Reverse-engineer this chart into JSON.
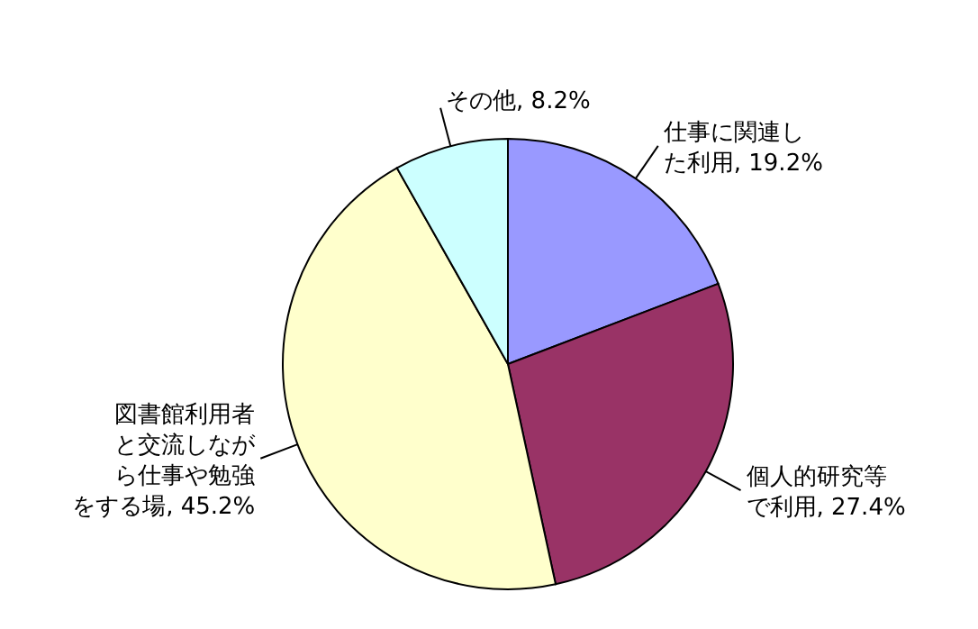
{
  "chart_data": {
    "type": "pie",
    "categories": [
      "仕事に関連した利用",
      "個人的研究等で利用",
      "図書館利用者と交流しながら仕事や勉強をする場",
      "その他"
    ],
    "values": [
      19.2,
      27.4,
      45.2,
      8.2
    ],
    "colors": [
      "#9999ff",
      "#993366",
      "#ffffcc",
      "#ccffff"
    ],
    "value_labels": [
      ", 19.2%",
      ", 27.4%",
      ", 45.2%",
      ", 8.2%"
    ]
  }
}
